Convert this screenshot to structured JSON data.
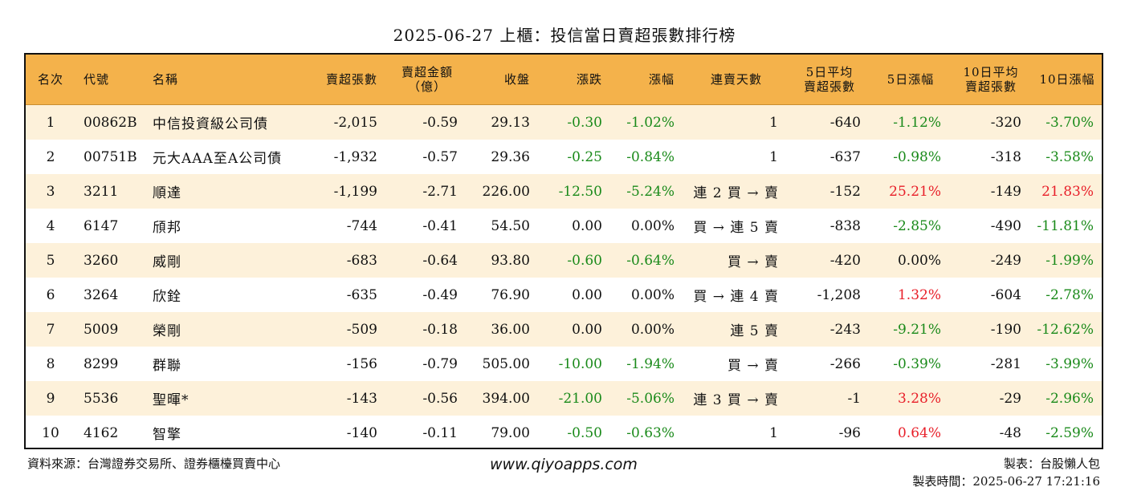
{
  "title": "2025-06-27 上櫃：投信當日賣超張數排行榜",
  "header": {
    "rank": "名次",
    "code": "代號",
    "name": "名稱",
    "sell_shares": "賣超張數",
    "sell_amount_l1": "賣超金額",
    "sell_amount_l2": "（億）",
    "close": "收盤",
    "change": "漲跌",
    "pct": "漲幅",
    "streak": "連賣天數",
    "avg5_l1": "5日平均",
    "avg5_l2": "賣超張數",
    "pct5": "5日漲幅",
    "avg10_l1": "10日平均",
    "avg10_l2": "賣超張數",
    "pct10": "10日漲幅"
  },
  "rows": [
    {
      "rank": "1",
      "code": "00862B",
      "name": "中信投資級公司債",
      "sell": "-2,015",
      "amount": "-0.59",
      "close": "29.13",
      "change": "-0.30",
      "pct": "-1.02%",
      "streak": "1",
      "avg5": "-640",
      "pct5": "-1.12%",
      "avg10": "-320",
      "pct10": "-3.70%"
    },
    {
      "rank": "2",
      "code": "00751B",
      "name": "元大AAA至A公司債",
      "sell": "-1,932",
      "amount": "-0.57",
      "close": "29.36",
      "change": "-0.25",
      "pct": "-0.84%",
      "streak": "1",
      "avg5": "-637",
      "pct5": "-0.98%",
      "avg10": "-318",
      "pct10": "-3.58%"
    },
    {
      "rank": "3",
      "code": "3211",
      "name": "順達",
      "sell": "-1,199",
      "amount": "-2.71",
      "close": "226.00",
      "change": "-12.50",
      "pct": "-5.24%",
      "streak": "連 2 買 → 賣",
      "avg5": "-152",
      "pct5": "25.21%",
      "avg10": "-149",
      "pct10": "21.83%"
    },
    {
      "rank": "4",
      "code": "6147",
      "name": "頎邦",
      "sell": "-744",
      "amount": "-0.41",
      "close": "54.50",
      "change": "0.00",
      "pct": "0.00%",
      "streak": "買 → 連 5 賣",
      "avg5": "-838",
      "pct5": "-2.85%",
      "avg10": "-490",
      "pct10": "-11.81%"
    },
    {
      "rank": "5",
      "code": "3260",
      "name": "威剛",
      "sell": "-683",
      "amount": "-0.64",
      "close": "93.80",
      "change": "-0.60",
      "pct": "-0.64%",
      "streak": "買 → 賣",
      "avg5": "-420",
      "pct5": "0.00%",
      "avg10": "-249",
      "pct10": "-1.99%"
    },
    {
      "rank": "6",
      "code": "3264",
      "name": "欣銓",
      "sell": "-635",
      "amount": "-0.49",
      "close": "76.90",
      "change": "0.00",
      "pct": "0.00%",
      "streak": "買 → 連 4 賣",
      "avg5": "-1,208",
      "pct5": "1.32%",
      "avg10": "-604",
      "pct10": "-2.78%"
    },
    {
      "rank": "7",
      "code": "5009",
      "name": "榮剛",
      "sell": "-509",
      "amount": "-0.18",
      "close": "36.00",
      "change": "0.00",
      "pct": "0.00%",
      "streak": "連 5 賣",
      "avg5": "-243",
      "pct5": "-9.21%",
      "avg10": "-190",
      "pct10": "-12.62%"
    },
    {
      "rank": "8",
      "code": "8299",
      "name": "群聯",
      "sell": "-156",
      "amount": "-0.79",
      "close": "505.00",
      "change": "-10.00",
      "pct": "-1.94%",
      "streak": "買 → 賣",
      "avg5": "-266",
      "pct5": "-0.39%",
      "avg10": "-281",
      "pct10": "-3.99%"
    },
    {
      "rank": "9",
      "code": "5536",
      "name": "聖暉*",
      "sell": "-143",
      "amount": "-0.56",
      "close": "394.00",
      "change": "-21.00",
      "pct": "-5.06%",
      "streak": "連 3 買 → 賣",
      "avg5": "-1",
      "pct5": "3.28%",
      "avg10": "-29",
      "pct10": "-2.96%"
    },
    {
      "rank": "10",
      "code": "4162",
      "name": "智擎",
      "sell": "-140",
      "amount": "-0.11",
      "close": "79.00",
      "change": "-0.50",
      "pct": "-0.63%",
      "streak": "1",
      "avg5": "-96",
      "pct5": "0.64%",
      "avg10": "-48",
      "pct10": "-2.59%"
    }
  ],
  "footer": {
    "source": "資料來源：台灣證券交易所、證券櫃檯買賣中心",
    "site": "www.qiyoapps.com",
    "maker": "製表：台股懶人包",
    "made_time": "製表時間：2025-06-27 17:21:16"
  },
  "colors": {
    "header_bg": "#f4b24b",
    "stripe_bg": "#fdf1da",
    "down": "#1a8a1a",
    "up": "#e8202a"
  }
}
